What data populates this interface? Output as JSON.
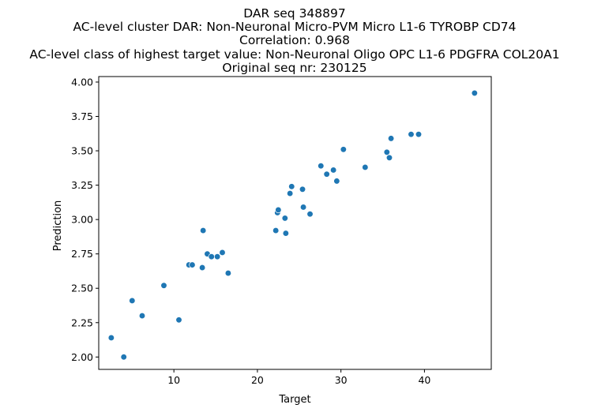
{
  "chart_data": {
    "type": "scatter",
    "title_lines": [
      "DAR seq 348897",
      "AC-level cluster DAR: Non-Neuronal Micro-PVM Micro L1-6 TYROBP CD74",
      "Correlation: 0.968",
      "AC-level class of highest target value: Non-Neuronal Oligo OPC L1-6 PDGFRA COL20A1",
      "Original seq nr: 230125"
    ],
    "xlabel": "Target",
    "ylabel": "Prediction",
    "xlim": [
      1.0,
      48.0
    ],
    "ylim": [
      1.91,
      4.04
    ],
    "xticks": [
      10,
      20,
      30,
      40
    ],
    "yticks": [
      2.0,
      2.25,
      2.5,
      2.75,
      3.0,
      3.25,
      3.5,
      3.75,
      4.0
    ],
    "xtick_labels": [
      "10",
      "20",
      "30",
      "40"
    ],
    "ytick_labels": [
      "2.00",
      "2.25",
      "2.50",
      "2.75",
      "3.00",
      "3.25",
      "3.50",
      "3.75",
      "4.00"
    ],
    "grid": false,
    "marker_color": "#1f77b4",
    "points": [
      {
        "x": 2.5,
        "y": 2.14
      },
      {
        "x": 4.0,
        "y": 2.0
      },
      {
        "x": 5.0,
        "y": 2.41
      },
      {
        "x": 6.2,
        "y": 2.3
      },
      {
        "x": 8.8,
        "y": 2.52
      },
      {
        "x": 10.6,
        "y": 2.27
      },
      {
        "x": 11.8,
        "y": 2.67
      },
      {
        "x": 12.2,
        "y": 2.67
      },
      {
        "x": 13.4,
        "y": 2.65
      },
      {
        "x": 13.5,
        "y": 2.92
      },
      {
        "x": 14.0,
        "y": 2.75
      },
      {
        "x": 14.5,
        "y": 2.73
      },
      {
        "x": 15.2,
        "y": 2.73
      },
      {
        "x": 15.8,
        "y": 2.76
      },
      {
        "x": 16.5,
        "y": 2.61
      },
      {
        "x": 22.2,
        "y": 2.92
      },
      {
        "x": 22.4,
        "y": 3.05
      },
      {
        "x": 22.5,
        "y": 3.07
      },
      {
        "x": 23.3,
        "y": 3.01
      },
      {
        "x": 23.4,
        "y": 2.9
      },
      {
        "x": 23.9,
        "y": 3.19
      },
      {
        "x": 24.1,
        "y": 3.24
      },
      {
        "x": 25.4,
        "y": 3.22
      },
      {
        "x": 25.5,
        "y": 3.09
      },
      {
        "x": 26.3,
        "y": 3.04
      },
      {
        "x": 27.6,
        "y": 3.39
      },
      {
        "x": 28.3,
        "y": 3.33
      },
      {
        "x": 29.1,
        "y": 3.36
      },
      {
        "x": 29.5,
        "y": 3.28
      },
      {
        "x": 30.3,
        "y": 3.51
      },
      {
        "x": 32.9,
        "y": 3.38
      },
      {
        "x": 35.5,
        "y": 3.49
      },
      {
        "x": 35.8,
        "y": 3.45
      },
      {
        "x": 36.0,
        "y": 3.59
      },
      {
        "x": 38.4,
        "y": 3.62
      },
      {
        "x": 39.3,
        "y": 3.62
      },
      {
        "x": 46.0,
        "y": 3.92
      }
    ]
  }
}
